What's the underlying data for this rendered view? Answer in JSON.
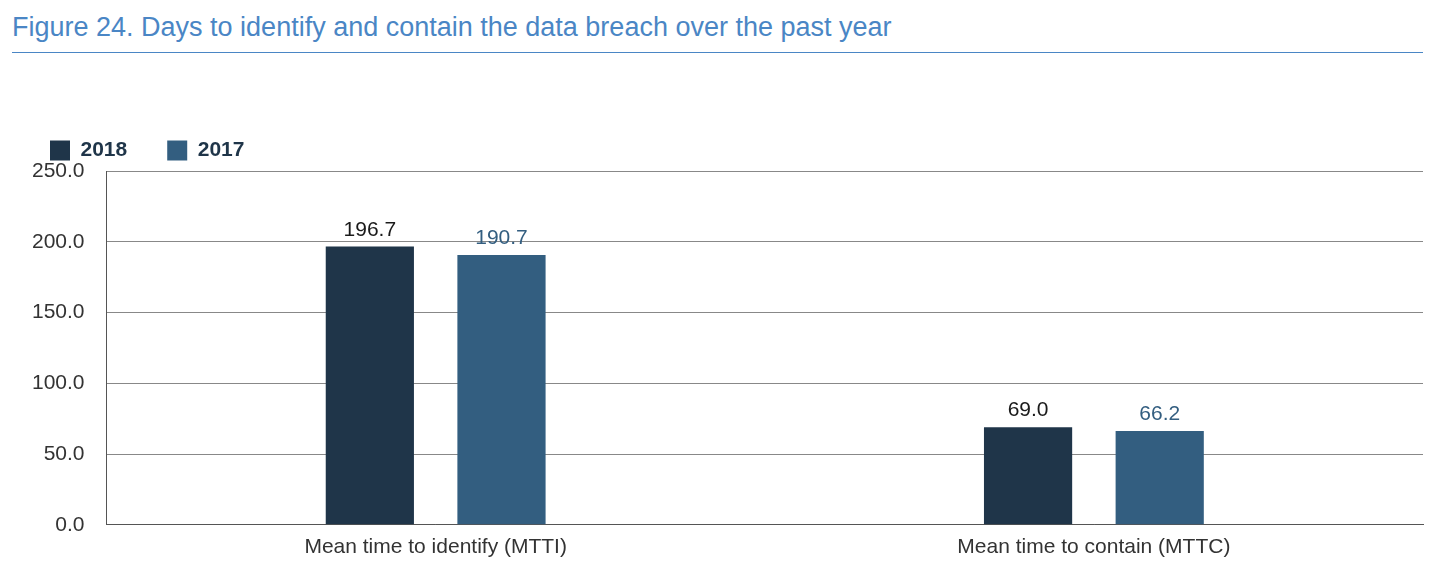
{
  "chart_data": {
    "type": "bar",
    "title": "Figure 24. Days to identify and contain the data breach over the past year",
    "categories": [
      "Mean time to identify (MTTI)",
      "Mean time to contain (MTTC)"
    ],
    "series": [
      {
        "name": "2018",
        "color": "#1f3549",
        "values": [
          196.7,
          69
        ],
        "value_labels": [
          "196.7",
          "69.0"
        ]
      },
      {
        "name": "2017",
        "color": "#335e80",
        "values": [
          190.7,
          66.2
        ],
        "value_labels": [
          "190.7",
          "66.2"
        ]
      }
    ],
    "ylim": [
      0,
      250
    ],
    "yticks": [
      {
        "value": 0,
        "label": "0.0"
      },
      {
        "value": 50,
        "label": "50.0"
      },
      {
        "value": 100,
        "label": "100.0"
      },
      {
        "value": 150,
        "label": "150.0"
      },
      {
        "value": 200,
        "label": "200.0"
      },
      {
        "value": 250,
        "label": "250.0"
      }
    ],
    "grid": true,
    "legend": "top-left",
    "data_labels": true
  }
}
